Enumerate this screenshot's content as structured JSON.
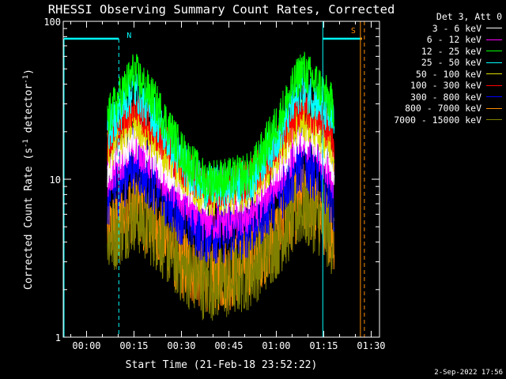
{
  "chart_data": {
    "type": "line",
    "title": "RHESSI Observing Summary Count Rates, Corrected",
    "xlabel": "Start Time (21-Feb-18 23:52:22)",
    "ylabel": "Corrected Count Rate (s⁻¹ detector⁻¹)",
    "ylabel_base": "Corrected Count Rate (s",
    "ylabel_sup1": "-1",
    "ylabel_mid": " detector",
    "ylabel_sup2": "-1",
    "ylabel_end": ")",
    "yscale": "log",
    "ylim": [
      1,
      100
    ],
    "xlim_minutes": [
      -7.37,
      92.63
    ],
    "x_ticks": [
      {
        "label": "00:00",
        "minutes": 0
      },
      {
        "label": "00:15",
        "minutes": 15
      },
      {
        "label": "00:30",
        "minutes": 30
      },
      {
        "label": "00:45",
        "minutes": 45
      },
      {
        "label": "01:00",
        "minutes": 60
      },
      {
        "label": "01:15",
        "minutes": 75
      },
      {
        "label": "01:30",
        "minutes": 90
      }
    ],
    "y_ticks": [
      {
        "label": "1",
        "value": 1
      },
      {
        "label": "10",
        "value": 10
      },
      {
        "label": "100",
        "value": 100
      }
    ],
    "legend_header": "Det 3, Att 0",
    "legend_position": "top-right-outside",
    "data_window_minutes": [
      6.6,
      78.3
    ],
    "series": [
      {
        "name": "3 - 6 keV",
        "color": "#ffffff",
        "x": [
          6.6,
          15,
          22,
          30,
          37,
          45,
          52,
          60,
          68,
          74,
          78.3
        ],
        "y": [
          12,
          19,
          14,
          9.5,
          8,
          8,
          8.5,
          12,
          20,
          17,
          12
        ]
      },
      {
        "name": "6 - 12 keV",
        "color": "#ff00ff",
        "x": [
          6.6,
          15,
          22,
          30,
          37,
          45,
          52,
          60,
          68,
          74,
          78.3
        ],
        "y": [
          10,
          17,
          12,
          7.5,
          5.5,
          5.5,
          6,
          10,
          18,
          15,
          10
        ]
      },
      {
        "name": "12 - 25 keV",
        "color": "#00ff00",
        "x": [
          6.6,
          15,
          22,
          30,
          37,
          45,
          52,
          60,
          68,
          74,
          78.3
        ],
        "y": [
          24,
          48,
          30,
          15,
          10,
          10,
          11,
          22,
          50,
          38,
          28
        ]
      },
      {
        "name": "25 - 50 keV",
        "color": "#00ffff",
        "x": [
          6.6,
          15,
          22,
          30,
          37,
          45,
          52,
          60,
          68,
          74,
          78.3
        ],
        "y": [
          20,
          38,
          24,
          13,
          9,
          9,
          10,
          18,
          38,
          30,
          22
        ]
      },
      {
        "name": "50 - 100 keV",
        "color": "#dddd00",
        "x": [
          6.6,
          15,
          22,
          30,
          37,
          45,
          52,
          60,
          68,
          74,
          78.3
        ],
        "y": [
          15,
          24,
          17,
          11,
          8,
          8,
          9,
          14,
          25,
          20,
          15
        ]
      },
      {
        "name": "100 - 300 keV",
        "color": "#ff0000",
        "x": [
          6.6,
          15,
          22,
          30,
          37,
          45,
          52,
          60,
          68,
          74,
          78.3
        ],
        "y": [
          18,
          30,
          20,
          12,
          9,
          9,
          10,
          16,
          30,
          24,
          18
        ]
      },
      {
        "name": "300 - 800 keV",
        "color": "#0000ff",
        "x": [
          6.6,
          15,
          22,
          30,
          37,
          45,
          52,
          60,
          68,
          74,
          78.3
        ],
        "y": [
          8,
          14,
          10,
          6.5,
          5,
          5,
          5.5,
          8.5,
          14,
          12,
          8
        ]
      },
      {
        "name": "800 - 7000 keV",
        "color": "#ff8c00",
        "x": [
          6.6,
          15,
          22,
          30,
          37,
          45,
          52,
          60,
          68,
          74,
          78.3
        ],
        "y": [
          4.5,
          7,
          5,
          3,
          2.5,
          2.5,
          3,
          4.5,
          7.5,
          6,
          4.5
        ]
      },
      {
        "name": "7000 - 15000 keV",
        "color": "#808000",
        "x": [
          6.6,
          15,
          22,
          30,
          37,
          45,
          52,
          60,
          68,
          74,
          78.3
        ],
        "y": [
          4,
          6,
          4.5,
          2.8,
          2.2,
          2.2,
          2.6,
          4,
          6.5,
          5.5,
          4
        ]
      }
    ],
    "annotations": [
      {
        "label": "N",
        "color": "#00ffff",
        "at_minutes": 10.2
      },
      {
        "label": "S",
        "color": "#ff8c00",
        "at_minutes": 86.6
      }
    ]
  },
  "footer": {
    "timestamp": "2-Sep-2022 17:56"
  }
}
